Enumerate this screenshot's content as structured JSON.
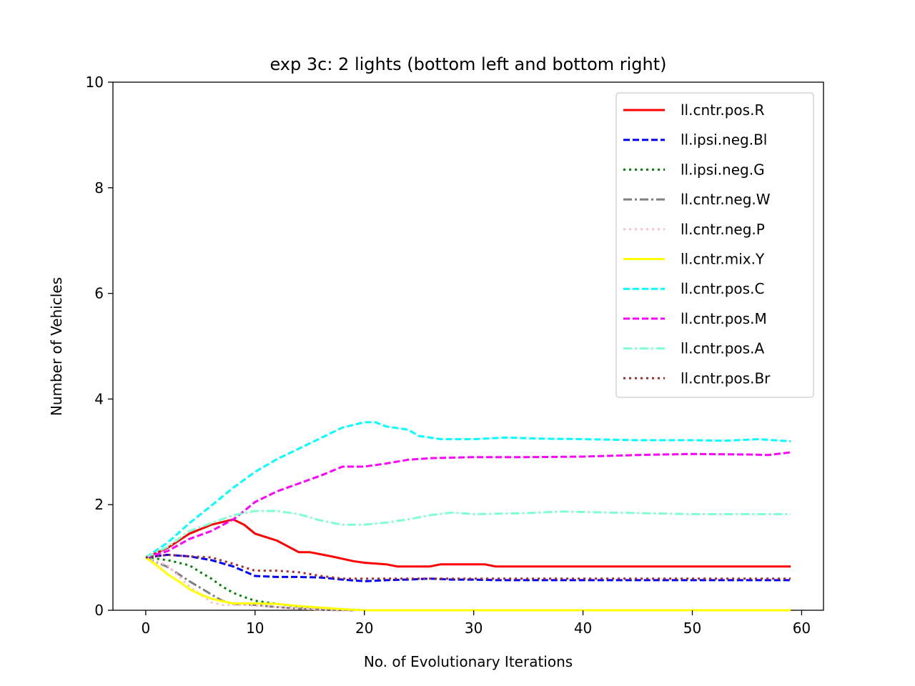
{
  "chart_data": {
    "type": "line",
    "title": "exp 3c: 2 lights (bottom left and bottom right)",
    "xlabel": "No. of Evolutionary Iterations",
    "ylabel": "Number of Vehicles",
    "xlim": [
      -3,
      62
    ],
    "ylim": [
      0,
      10
    ],
    "xticks": [
      0,
      10,
      20,
      30,
      40,
      50,
      60
    ],
    "yticks": [
      0,
      2,
      4,
      6,
      8,
      10
    ],
    "grid": false,
    "legend_position": "top-right",
    "series": [
      {
        "name": "ll.cntr.pos.R",
        "color": "#ff0000",
        "dash": "solid",
        "points": [
          [
            0,
            1.0
          ],
          [
            2,
            1.18
          ],
          [
            4,
            1.45
          ],
          [
            6,
            1.62
          ],
          [
            8,
            1.72
          ],
          [
            9,
            1.62
          ],
          [
            10,
            1.45
          ],
          [
            12,
            1.32
          ],
          [
            14,
            1.1
          ],
          [
            15,
            1.1
          ],
          [
            17,
            1.02
          ],
          [
            19,
            0.93
          ],
          [
            20,
            0.9
          ],
          [
            22,
            0.87
          ],
          [
            23,
            0.83
          ],
          [
            26,
            0.83
          ],
          [
            27,
            0.87
          ],
          [
            29,
            0.87
          ],
          [
            31,
            0.87
          ],
          [
            32,
            0.83
          ],
          [
            45,
            0.83
          ],
          [
            59,
            0.83
          ]
        ]
      },
      {
        "name": "ll.ipsi.neg.Bl",
        "color": "#0000ff",
        "dash": "dashed",
        "points": [
          [
            0,
            1.0
          ],
          [
            2,
            1.05
          ],
          [
            4,
            1.02
          ],
          [
            6,
            0.95
          ],
          [
            8,
            0.83
          ],
          [
            10,
            0.65
          ],
          [
            12,
            0.63
          ],
          [
            14,
            0.63
          ],
          [
            16,
            0.62
          ],
          [
            18,
            0.58
          ],
          [
            20,
            0.55
          ],
          [
            22,
            0.57
          ],
          [
            24,
            0.58
          ],
          [
            26,
            0.6
          ],
          [
            28,
            0.58
          ],
          [
            30,
            0.58
          ],
          [
            32,
            0.57
          ],
          [
            40,
            0.57
          ],
          [
            59,
            0.57
          ]
        ]
      },
      {
        "name": "ll.ipsi.neg.G",
        "color": "#008000",
        "dash": "dotted",
        "points": [
          [
            0,
            1.0
          ],
          [
            2,
            0.95
          ],
          [
            4,
            0.85
          ],
          [
            5,
            0.72
          ],
          [
            6,
            0.6
          ],
          [
            7,
            0.45
          ],
          [
            8,
            0.33
          ],
          [
            9,
            0.25
          ],
          [
            10,
            0.18
          ],
          [
            12,
            0.12
          ],
          [
            14,
            0.07
          ],
          [
            16,
            0.04
          ],
          [
            18,
            0.02
          ],
          [
            20,
            0.0
          ],
          [
            59,
            0.0
          ]
        ]
      },
      {
        "name": "ll.cntr.neg.W",
        "color": "#808080",
        "dash": "dashdot",
        "points": [
          [
            0,
            1.0
          ],
          [
            2,
            0.82
          ],
          [
            4,
            0.55
          ],
          [
            6,
            0.3
          ],
          [
            7,
            0.18
          ],
          [
            8,
            0.12
          ],
          [
            10,
            0.1
          ],
          [
            12,
            0.06
          ],
          [
            14,
            0.03
          ],
          [
            16,
            0.01
          ],
          [
            18,
            0.0
          ],
          [
            59,
            0.0
          ]
        ]
      },
      {
        "name": "ll.cntr.neg.P",
        "color": "#ffc0cb",
        "dash": "dotted",
        "points": [
          [
            0,
            1.0
          ],
          [
            2,
            0.85
          ],
          [
            4,
            0.45
          ],
          [
            6,
            0.15
          ],
          [
            7,
            0.1
          ],
          [
            9,
            0.1
          ],
          [
            11,
            0.08
          ],
          [
            14,
            0.03
          ],
          [
            17,
            0.01
          ],
          [
            19,
            0.0
          ],
          [
            59,
            0.0
          ]
        ]
      },
      {
        "name": "ll.cntr.mix.Y",
        "color": "#ffff00",
        "dash": "solid",
        "points": [
          [
            0,
            1.0
          ],
          [
            1,
            0.85
          ],
          [
            2,
            0.68
          ],
          [
            3,
            0.55
          ],
          [
            4,
            0.4
          ],
          [
            5,
            0.3
          ],
          [
            6,
            0.22
          ],
          [
            7,
            0.17
          ],
          [
            8,
            0.13
          ],
          [
            10,
            0.13
          ],
          [
            12,
            0.12
          ],
          [
            14,
            0.08
          ],
          [
            16,
            0.05
          ],
          [
            18,
            0.02
          ],
          [
            20,
            0.0
          ],
          [
            59,
            0.0
          ]
        ]
      },
      {
        "name": "ll.cntr.pos.C",
        "color": "#00ffff",
        "dash": "dashed",
        "points": [
          [
            0,
            1.0
          ],
          [
            2,
            1.28
          ],
          [
            4,
            1.65
          ],
          [
            6,
            1.98
          ],
          [
            8,
            2.32
          ],
          [
            10,
            2.62
          ],
          [
            12,
            2.86
          ],
          [
            14,
            3.06
          ],
          [
            16,
            3.26
          ],
          [
            18,
            3.46
          ],
          [
            20,
            3.56
          ],
          [
            21,
            3.56
          ],
          [
            22,
            3.48
          ],
          [
            24,
            3.42
          ],
          [
            25,
            3.3
          ],
          [
            27,
            3.24
          ],
          [
            30,
            3.24
          ],
          [
            33,
            3.27
          ],
          [
            36,
            3.25
          ],
          [
            40,
            3.24
          ],
          [
            45,
            3.22
          ],
          [
            50,
            3.22
          ],
          [
            53,
            3.21
          ],
          [
            56,
            3.24
          ],
          [
            59,
            3.2
          ]
        ]
      },
      {
        "name": "ll.cntr.pos.M",
        "color": "#ff00ff",
        "dash": "dashed",
        "points": [
          [
            0,
            1.0
          ],
          [
            2,
            1.12
          ],
          [
            4,
            1.35
          ],
          [
            6,
            1.5
          ],
          [
            8,
            1.72
          ],
          [
            9,
            1.88
          ],
          [
            10,
            2.05
          ],
          [
            12,
            2.25
          ],
          [
            14,
            2.4
          ],
          [
            16,
            2.55
          ],
          [
            18,
            2.72
          ],
          [
            20,
            2.72
          ],
          [
            22,
            2.78
          ],
          [
            24,
            2.85
          ],
          [
            26,
            2.88
          ],
          [
            30,
            2.9
          ],
          [
            35,
            2.9
          ],
          [
            40,
            2.91
          ],
          [
            45,
            2.94
          ],
          [
            50,
            2.96
          ],
          [
            55,
            2.95
          ],
          [
            57,
            2.94
          ],
          [
            59,
            2.99
          ]
        ]
      },
      {
        "name": "ll.cntr.pos.A",
        "color": "#7fffd4",
        "dash": "dashdot",
        "points": [
          [
            0,
            1.0
          ],
          [
            2,
            1.2
          ],
          [
            4,
            1.5
          ],
          [
            6,
            1.65
          ],
          [
            8,
            1.8
          ],
          [
            10,
            1.88
          ],
          [
            12,
            1.88
          ],
          [
            14,
            1.82
          ],
          [
            16,
            1.7
          ],
          [
            18,
            1.62
          ],
          [
            20,
            1.62
          ],
          [
            22,
            1.66
          ],
          [
            24,
            1.72
          ],
          [
            26,
            1.8
          ],
          [
            28,
            1.85
          ],
          [
            30,
            1.82
          ],
          [
            35,
            1.84
          ],
          [
            38,
            1.87
          ],
          [
            40,
            1.86
          ],
          [
            45,
            1.84
          ],
          [
            50,
            1.82
          ],
          [
            55,
            1.82
          ],
          [
            59,
            1.82
          ]
        ]
      },
      {
        "name": "ll.cntr.pos.Br",
        "color": "#a52a2a",
        "dash": "dotted",
        "points": [
          [
            0,
            1.0
          ],
          [
            2,
            1.05
          ],
          [
            4,
            1.02
          ],
          [
            6,
            1.0
          ],
          [
            8,
            0.88
          ],
          [
            10,
            0.75
          ],
          [
            12,
            0.75
          ],
          [
            14,
            0.72
          ],
          [
            16,
            0.65
          ],
          [
            18,
            0.6
          ],
          [
            20,
            0.6
          ],
          [
            22,
            0.6
          ],
          [
            24,
            0.6
          ],
          [
            26,
            0.6
          ],
          [
            30,
            0.6
          ],
          [
            40,
            0.6
          ],
          [
            50,
            0.6
          ],
          [
            59,
            0.6
          ]
        ]
      }
    ]
  }
}
